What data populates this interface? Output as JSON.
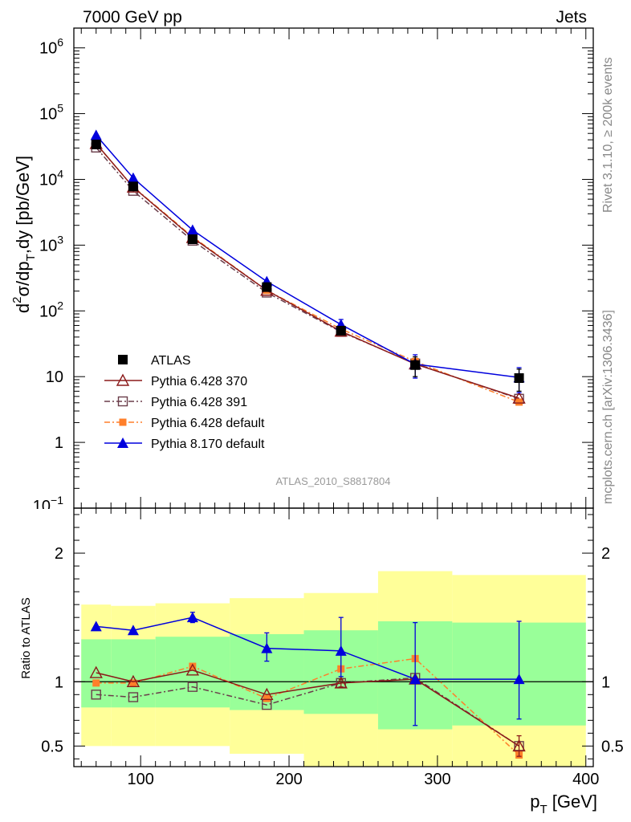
{
  "header": {
    "left": "7000 GeV pp",
    "right": "Jets"
  },
  "side_labels": {
    "rivet": "Rivet 3.1.10, ≥ 200k events",
    "mcplots": "mcplots.cern.ch [arXiv:1306.3436]"
  },
  "watermark": "ATLAS_2010_S8817804",
  "legend": [
    {
      "label": "ATLAS",
      "marker": "square-filled",
      "color": "#000000",
      "line": "none"
    },
    {
      "label": "Pythia 6.428 370",
      "marker": "triangle-open",
      "color": "#8b1a1a",
      "line": "solid"
    },
    {
      "label": "Pythia 6.428 391",
      "marker": "square-open",
      "color": "#6a3d4a",
      "line": "dashdot"
    },
    {
      "label": "Pythia 6.428 default",
      "marker": "square-filled-small",
      "color": "#ff7f2a",
      "line": "dashdot"
    },
    {
      "label": "Pythia 8.170 default",
      "marker": "triangle-filled",
      "color": "#0000dd",
      "line": "solid"
    }
  ],
  "chart_data": [
    {
      "type": "scatter",
      "panel": "main",
      "ylabel_parts": {
        "pre": "d",
        "sup": "2",
        "mid": "σ/dp",
        "sub": "T",
        "post": ",dy [pb/GeV]"
      },
      "yscale": "log",
      "ylim": [
        0.1,
        2000000
      ],
      "xlim": [
        55,
        405
      ],
      "yticks": [
        {
          "v": 1,
          "label": "1"
        },
        {
          "v": 10,
          "label": "10"
        },
        {
          "v": 100,
          "base": "10",
          "exp": "2"
        },
        {
          "v": 1000,
          "base": "10",
          "exp": "3"
        },
        {
          "v": 10000,
          "base": "10",
          "exp": "4"
        },
        {
          "v": 100000,
          "base": "10",
          "exp": "5"
        },
        {
          "v": 1000000,
          "base": "10",
          "exp": "6"
        }
      ],
      "ytick_bottom_partial": {
        "base": "10",
        "exp": "−1"
      },
      "data": {
        "ATLAS": {
          "x": [
            70,
            95,
            135,
            185,
            235,
            285,
            355
          ],
          "y": [
            34000,
            7800,
            1230,
            230,
            50,
            15,
            9.5
          ],
          "yerr_low": [
            3000,
            700,
            110,
            25,
            6,
            5,
            3.5
          ],
          "yerr_high": [
            3000,
            700,
            110,
            25,
            6,
            5,
            3.5
          ]
        },
        "Pythia 6.428 370": {
          "x": [
            70,
            95,
            135,
            185,
            235,
            285,
            355
          ],
          "y": [
            35000,
            7600,
            1300,
            205,
            49,
            15.5,
            4.7
          ]
        },
        "Pythia 6.428 391": {
          "x": [
            70,
            95,
            135,
            185,
            235,
            285,
            355
          ],
          "y": [
            30500,
            6700,
            1170,
            190,
            48,
            15.8,
            4.6
          ]
        },
        "Pythia 6.428 default": {
          "x": [
            70,
            95,
            135,
            185,
            235,
            285,
            355
          ],
          "y": [
            34500,
            7700,
            1340,
            205,
            53,
            17,
            4.1
          ]
        },
        "Pythia 8.170 default": {
          "x": [
            70,
            95,
            135,
            185,
            235,
            285,
            355
          ],
          "y": [
            47000,
            10500,
            1700,
            280,
            62,
            15.5,
            9.7
          ],
          "yerr_low": [
            0,
            0,
            0,
            0,
            12,
            6,
            4
          ],
          "yerr_high": [
            0,
            0,
            0,
            0,
            12,
            6,
            4
          ]
        }
      }
    },
    {
      "type": "scatter",
      "panel": "ratio",
      "ylabel": "Ratio to ATLAS",
      "xlabel_base": "p",
      "xlabel_sub": "T",
      "xlabel_unit": "[GeV]",
      "xlim": [
        55,
        405
      ],
      "ylim": [
        0.34,
        2.35
      ],
      "xticks": [
        100,
        200,
        300,
        400
      ],
      "yticks": [
        0.5,
        1,
        2
      ],
      "reference_line": 1,
      "bands": [
        {
          "x0": 60,
          "x1": 80,
          "green": [
            0.8,
            1.33
          ],
          "yellow": [
            0.5,
            1.6
          ]
        },
        {
          "x0": 80,
          "x1": 110,
          "green": [
            0.8,
            1.33
          ],
          "yellow": [
            0.5,
            1.59
          ]
        },
        {
          "x0": 110,
          "x1": 160,
          "green": [
            0.8,
            1.35
          ],
          "yellow": [
            0.5,
            1.61
          ]
        },
        {
          "x0": 160,
          "x1": 210,
          "green": [
            0.78,
            1.37
          ],
          "yellow": [
            0.44,
            1.65
          ]
        },
        {
          "x0": 210,
          "x1": 260,
          "green": [
            0.75,
            1.4
          ],
          "yellow": [
            0.34,
            1.69
          ]
        },
        {
          "x0": 260,
          "x1": 310,
          "green": [
            0.63,
            1.47
          ],
          "yellow": [
            0.34,
            1.86
          ]
        },
        {
          "x0": 310,
          "x1": 400,
          "green": [
            0.66,
            1.46
          ],
          "yellow": [
            0.34,
            1.83
          ]
        }
      ],
      "data": {
        "Pythia 6.428 370": {
          "x": [
            70,
            95,
            135,
            185,
            235,
            285,
            355
          ],
          "y": [
            1.07,
            1.0,
            1.09,
            0.9,
            0.99,
            1.02,
            0.5
          ],
          "yerr_low": [
            0,
            0,
            0,
            0,
            0.03,
            0,
            0.08
          ],
          "yerr_high": [
            0,
            0,
            0,
            0,
            0.03,
            0,
            0.08
          ]
        },
        "Pythia 6.428 391": {
          "x": [
            70,
            95,
            135,
            185,
            235,
            285,
            355
          ],
          "y": [
            0.9,
            0.88,
            0.96,
            0.82,
            0.99,
            1.03,
            0.5
          ]
        },
        "Pythia 6.428 default": {
          "x": [
            70,
            95,
            135,
            185,
            235,
            285,
            355
          ],
          "y": [
            0.99,
            0.99,
            1.12,
            0.87,
            1.1,
            1.18,
            0.43
          ]
        },
        "Pythia 8.170 default": {
          "x": [
            70,
            95,
            135,
            185,
            235,
            285,
            355
          ],
          "y": [
            1.43,
            1.4,
            1.5,
            1.26,
            1.24,
            1.02,
            1.02
          ],
          "yerr_low": [
            0,
            0,
            0.04,
            0.1,
            0.2,
            0.36,
            0.31
          ],
          "yerr_high": [
            0,
            0,
            0.04,
            0.12,
            0.26,
            0.44,
            0.45
          ]
        }
      }
    }
  ]
}
